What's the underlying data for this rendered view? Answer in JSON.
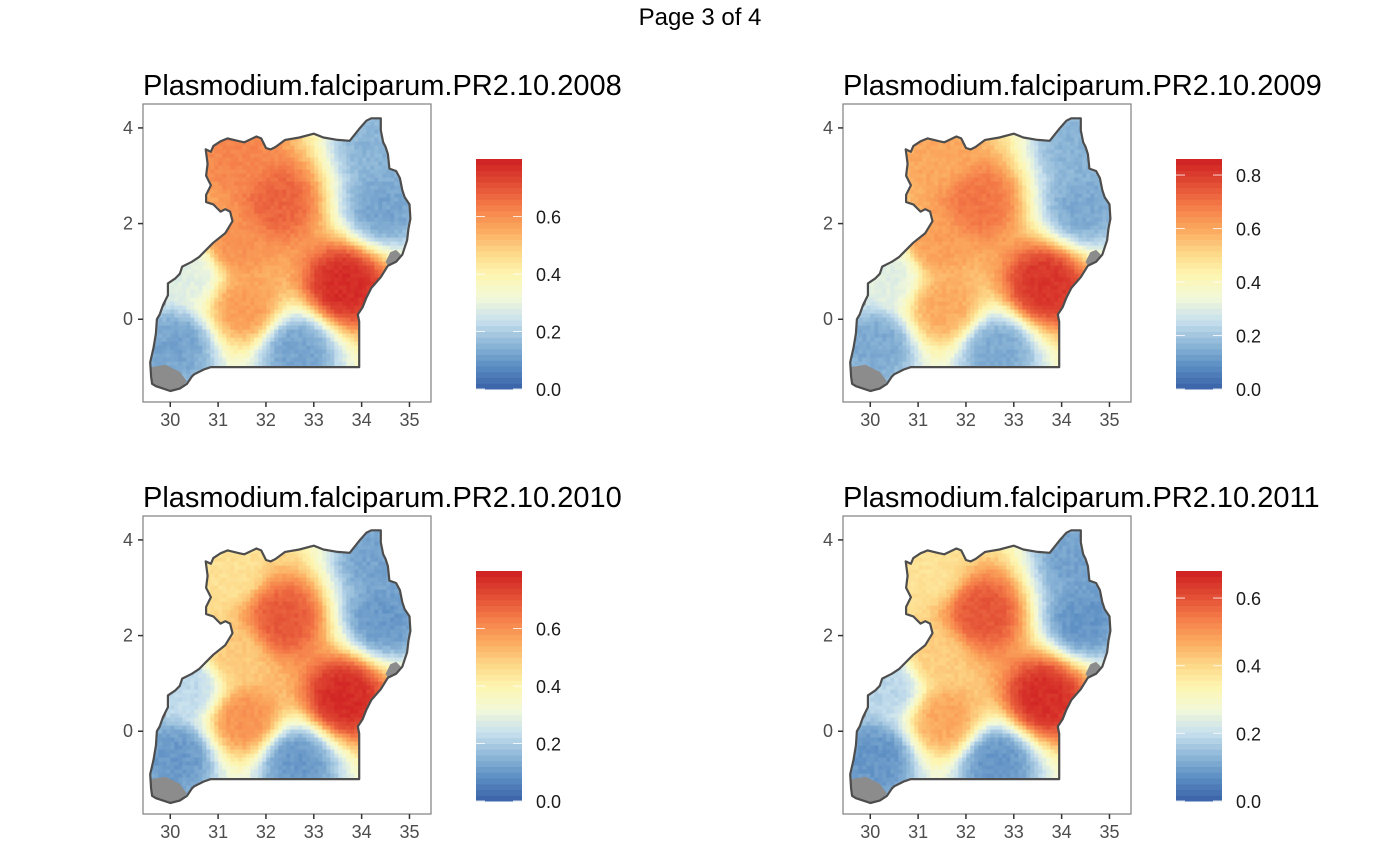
{
  "page_title": "Page 3 of 4",
  "chart_data": [
    {
      "type": "heatmap",
      "title": "Plasmodium.falciparum.PR2.10.2008",
      "xlabel": "",
      "ylabel": "",
      "xlim": [
        29.43,
        35.45
      ],
      "ylim": [
        -1.73,
        4.5
      ],
      "x_ticks": [
        30,
        31,
        32,
        33,
        34,
        35
      ],
      "y_ticks": [
        0,
        2,
        4
      ],
      "color_scale": {
        "palette": "RdYlBu (reversed)",
        "range": [
          0.0,
          0.8
        ],
        "breaks": [
          0.0,
          0.2,
          0.4,
          0.6
        ],
        "labels": [
          "0.0",
          "0.2",
          "0.4",
          "0.6"
        ]
      },
      "hotspots": [
        {
          "lon": 33.6,
          "lat": 0.75,
          "value": 0.78
        },
        {
          "lon": 32.2,
          "lat": 2.5,
          "value": 0.68
        },
        {
          "lon": 31.4,
          "lat": 3.4,
          "value": 0.62
        },
        {
          "lon": 31.5,
          "lat": 0.3,
          "value": 0.58
        },
        {
          "lon": 31.3,
          "lat": 1.6,
          "value": 0.6
        },
        {
          "lon": 32.6,
          "lat": -0.6,
          "value": 0.12
        },
        {
          "lon": 34.4,
          "lat": 2.4,
          "value": 0.12
        },
        {
          "lon": 30.1,
          "lat": -0.5,
          "value": 0.12
        },
        {
          "lon": 34.3,
          "lat": 3.6,
          "value": 0.15
        },
        {
          "lon": 30.4,
          "lat": 1.0,
          "value": 0.28
        }
      ]
    },
    {
      "type": "heatmap",
      "title": "Plasmodium.falciparum.PR2.10.2009",
      "xlabel": "",
      "ylabel": "",
      "xlim": [
        29.43,
        35.45
      ],
      "ylim": [
        -1.73,
        4.5
      ],
      "x_ticks": [
        30,
        31,
        32,
        33,
        34,
        35
      ],
      "y_ticks": [
        0,
        2,
        4
      ],
      "color_scale": {
        "palette": "RdYlBu (reversed)",
        "range": [
          0.0,
          0.86
        ],
        "breaks": [
          0.0,
          0.2,
          0.4,
          0.6,
          0.8
        ],
        "labels": [
          "0.0",
          "0.2",
          "0.4",
          "0.6",
          "0.8"
        ]
      },
      "hotspots": [
        {
          "lon": 33.6,
          "lat": 0.75,
          "value": 0.82
        },
        {
          "lon": 32.2,
          "lat": 2.5,
          "value": 0.7
        },
        {
          "lon": 31.4,
          "lat": 3.4,
          "value": 0.6
        },
        {
          "lon": 31.5,
          "lat": 0.3,
          "value": 0.6
        },
        {
          "lon": 31.3,
          "lat": 1.6,
          "value": 0.62
        },
        {
          "lon": 32.6,
          "lat": -0.6,
          "value": 0.14
        },
        {
          "lon": 34.4,
          "lat": 2.4,
          "value": 0.14
        },
        {
          "lon": 30.1,
          "lat": -0.5,
          "value": 0.14
        },
        {
          "lon": 34.3,
          "lat": 3.6,
          "value": 0.16
        },
        {
          "lon": 30.4,
          "lat": 1.0,
          "value": 0.3
        }
      ]
    },
    {
      "type": "heatmap",
      "title": "Plasmodium.falciparum.PR2.10.2010",
      "xlabel": "",
      "ylabel": "",
      "xlim": [
        29.43,
        35.45
      ],
      "ylim": [
        -1.73,
        4.5
      ],
      "x_ticks": [
        30,
        31,
        32,
        33,
        34,
        35
      ],
      "y_ticks": [
        0,
        2,
        4
      ],
      "color_scale": {
        "palette": "RdYlBu (reversed)",
        "range": [
          0.0,
          0.8
        ],
        "breaks": [
          0.0,
          0.2,
          0.4,
          0.6
        ],
        "labels": [
          "0.0",
          "0.2",
          "0.4",
          "0.6"
        ]
      },
      "hotspots": [
        {
          "lon": 33.6,
          "lat": 0.75,
          "value": 0.78
        },
        {
          "lon": 32.3,
          "lat": 2.4,
          "value": 0.7
        },
        {
          "lon": 31.2,
          "lat": 3.4,
          "value": 0.45
        },
        {
          "lon": 31.5,
          "lat": 0.3,
          "value": 0.6
        },
        {
          "lon": 31.3,
          "lat": 1.6,
          "value": 0.5
        },
        {
          "lon": 32.6,
          "lat": -0.6,
          "value": 0.1
        },
        {
          "lon": 34.4,
          "lat": 2.4,
          "value": 0.1
        },
        {
          "lon": 30.1,
          "lat": -0.5,
          "value": 0.1
        },
        {
          "lon": 34.3,
          "lat": 3.6,
          "value": 0.12
        },
        {
          "lon": 30.4,
          "lat": 1.0,
          "value": 0.22
        }
      ]
    },
    {
      "type": "heatmap",
      "title": "Plasmodium.falciparum.PR2.10.2011",
      "xlabel": "",
      "ylabel": "",
      "xlim": [
        29.43,
        35.45
      ],
      "ylim": [
        -1.73,
        4.5
      ],
      "x_ticks": [
        30,
        31,
        32,
        33,
        34,
        35
      ],
      "y_ticks": [
        0,
        2,
        4
      ],
      "color_scale": {
        "palette": "RdYlBu (reversed)",
        "range": [
          0.0,
          0.68
        ],
        "breaks": [
          0.0,
          0.2,
          0.4,
          0.6
        ],
        "labels": [
          "0.0",
          "0.2",
          "0.4",
          "0.6"
        ]
      },
      "hotspots": [
        {
          "lon": 33.6,
          "lat": 0.75,
          "value": 0.66
        },
        {
          "lon": 32.3,
          "lat": 2.5,
          "value": 0.6
        },
        {
          "lon": 31.2,
          "lat": 3.4,
          "value": 0.38
        },
        {
          "lon": 31.5,
          "lat": 0.3,
          "value": 0.48
        },
        {
          "lon": 31.3,
          "lat": 1.6,
          "value": 0.42
        },
        {
          "lon": 32.6,
          "lat": -0.6,
          "value": 0.08
        },
        {
          "lon": 34.4,
          "lat": 2.4,
          "value": 0.08
        },
        {
          "lon": 30.1,
          "lat": -0.5,
          "value": 0.08
        },
        {
          "lon": 34.3,
          "lat": 3.6,
          "value": 0.1
        },
        {
          "lon": 30.4,
          "lat": 1.0,
          "value": 0.18
        }
      ]
    }
  ]
}
